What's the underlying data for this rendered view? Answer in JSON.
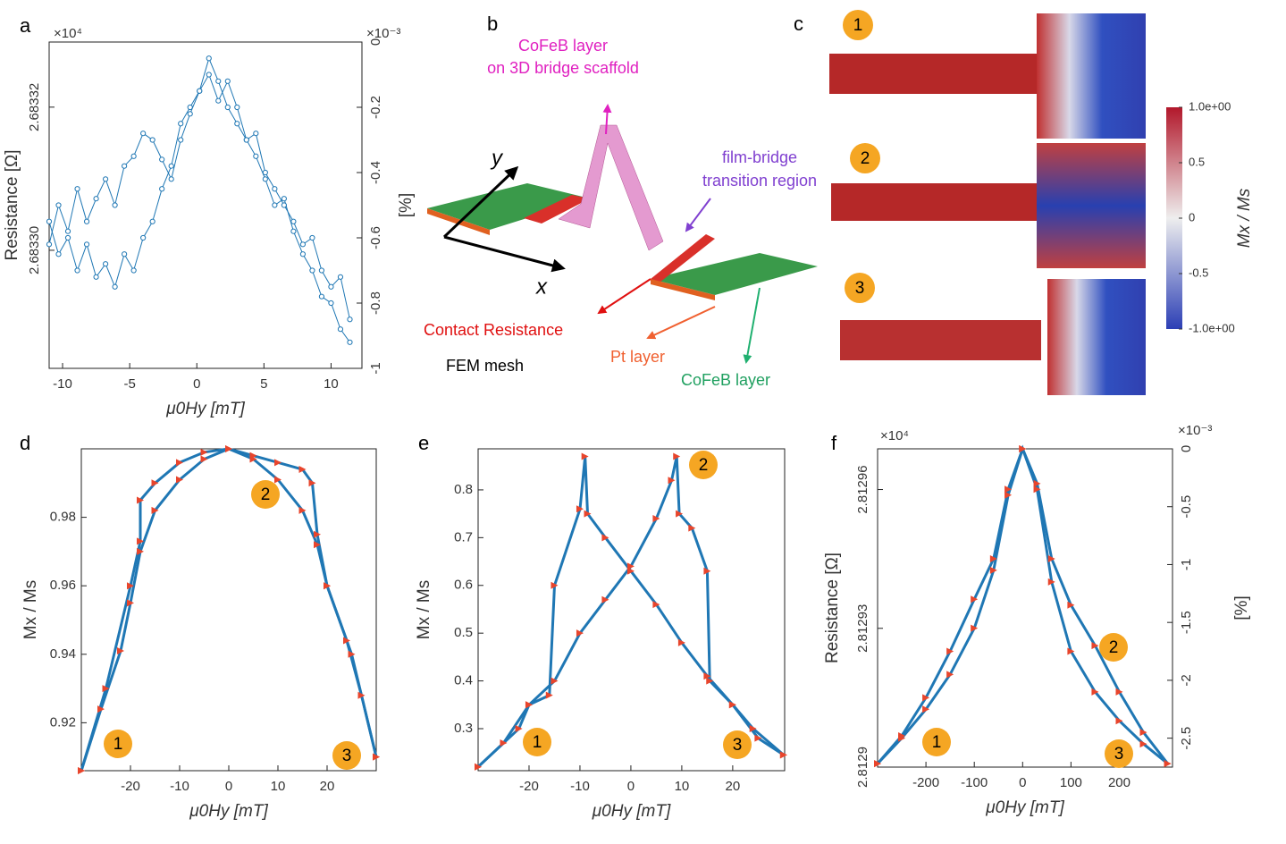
{
  "chart_data": [
    {
      "type": "line",
      "panel_label": "a",
      "xlabel": "μ0Hy [mT]",
      "ylabel": "Resistance [Ω]",
      "y2label": "[%]",
      "ymultiplier": "×10⁴",
      "y2multiplier": "×10⁻³",
      "xlim": [
        -11,
        12.3
      ],
      "xticks": [
        -10,
        -5,
        0,
        5,
        10
      ],
      "ylim": [
        2.6832835,
        2.6833291
      ],
      "yticks": [
        {
          "value": 2.6833,
          "label": "2.68330"
        },
        2.68332
      ],
      "y2lim": [
        -1,
        0
      ],
      "y2ticks": [
        0,
        -0.2,
        -0.4,
        -0.6,
        -0.8,
        -1
      ],
      "marker": "circle",
      "marker_color": "#1f77b4",
      "x": [
        -11,
        -10.3,
        -9.6,
        -8.9,
        -8.2,
        -7.5,
        -6.8,
        -6.1,
        -5.4,
        -4.7,
        -4,
        -3.3,
        -2.6,
        -1.9,
        -1.2,
        -0.5,
        0.2,
        0.9,
        1.6,
        2.3,
        3,
        3.7,
        4.4,
        5.1,
        5.8,
        6.5,
        7.2,
        7.9,
        8.6,
        9.3,
        10,
        10.7,
        11.4
      ],
      "series": [
        {
          "color": "#1f77b4",
          "axis": "y2",
          "values": [
            -0.62,
            -0.5,
            -0.58,
            -0.45,
            -0.55,
            -0.48,
            -0.42,
            -0.5,
            -0.38,
            -0.35,
            -0.28,
            -0.3,
            -0.36,
            -0.42,
            -0.3,
            -0.22,
            -0.15,
            -0.1,
            -0.18,
            -0.12,
            -0.2,
            -0.3,
            -0.28,
            -0.4,
            -0.45,
            -0.5,
            -0.55,
            -0.62,
            -0.6,
            -0.7,
            -0.75,
            -0.72,
            -0.85
          ]
        },
        {
          "color": "#1f77b4",
          "axis": "y2",
          "values": [
            -0.55,
            -0.65,
            -0.6,
            -0.7,
            -0.62,
            -0.72,
            -0.68,
            -0.75,
            -0.65,
            -0.7,
            -0.6,
            -0.55,
            -0.45,
            -0.38,
            -0.25,
            -0.2,
            -0.15,
            -0.05,
            -0.12,
            -0.2,
            -0.25,
            -0.3,
            -0.35,
            -0.42,
            -0.5,
            -0.48,
            -0.58,
            -0.65,
            -0.7,
            -0.78,
            -0.8,
            -0.88,
            -0.92
          ]
        }
      ]
    },
    {
      "type": "line",
      "panel_label": "d",
      "xlabel": "μ0Hy [mT]",
      "ylabel": "Mx / Ms",
      "xlim": [
        -30,
        30
      ],
      "xticks": [
        -20,
        -10,
        0,
        10,
        20
      ],
      "ylim": [
        0.906,
        1.0
      ],
      "yticks": [
        0.92,
        0.94,
        0.96,
        0.98
      ],
      "marker": "triangle",
      "marker_color": "#e8452c",
      "annotations": [
        "1",
        "2",
        "3"
      ],
      "series": [
        {
          "color": "#1f77b4",
          "x": [
            -30,
            -26,
            -22,
            -20,
            -18,
            -15,
            -10,
            -5,
            0,
            5,
            10,
            15,
            18,
            20,
            24,
            27,
            30
          ],
          "values": [
            0.906,
            0.924,
            0.941,
            0.955,
            0.97,
            0.982,
            0.991,
            0.997,
            1.0,
            0.997,
            0.991,
            0.982,
            0.972,
            0.96,
            0.944,
            0.928,
            0.91
          ]
        },
        {
          "color": "#1f77b4",
          "x": [
            -30,
            -25,
            -20,
            -18,
            -18,
            -15,
            -10,
            -5,
            0,
            5,
            10,
            15,
            17,
            18,
            20,
            25,
            30
          ],
          "values": [
            0.906,
            0.93,
            0.96,
            0.973,
            0.985,
            0.99,
            0.996,
            0.999,
            1.0,
            0.998,
            0.996,
            0.994,
            0.99,
            0.975,
            0.96,
            0.94,
            0.91
          ]
        }
      ]
    },
    {
      "type": "line",
      "panel_label": "e",
      "xlabel": "μ0Hy [mT]",
      "ylabel": "Mx / Ms",
      "xlim": [
        -30,
        30.2
      ],
      "xticks": [
        -20,
        -10,
        0,
        10,
        20
      ],
      "ylim": [
        0.212,
        0.886
      ],
      "yticks": [
        0.3,
        0.4,
        0.5,
        0.6,
        0.7,
        0.8
      ],
      "marker": "triangle",
      "marker_color": "#e8452c",
      "annotations": [
        "1",
        "2",
        "3"
      ],
      "series": [
        {
          "color": "#1f77b4",
          "x": [
            -30,
            -22,
            -20,
            -16,
            -15,
            -10,
            -9,
            -8.5,
            -5,
            0,
            5,
            10,
            15,
            20,
            24,
            30
          ],
          "values": [
            0.22,
            0.3,
            0.35,
            0.37,
            0.6,
            0.76,
            0.87,
            0.75,
            0.7,
            0.63,
            0.56,
            0.48,
            0.41,
            0.35,
            0.3,
            0.245
          ]
        },
        {
          "color": "#1f77b4",
          "x": [
            -30,
            -25,
            -20,
            -15,
            -10,
            -5,
            0,
            5,
            8,
            9,
            9.5,
            12,
            15,
            15.5,
            20,
            25,
            30
          ],
          "values": [
            0.22,
            0.27,
            0.35,
            0.4,
            0.5,
            0.57,
            0.64,
            0.74,
            0.82,
            0.87,
            0.75,
            0.72,
            0.63,
            0.4,
            0.35,
            0.28,
            0.245
          ]
        }
      ]
    },
    {
      "type": "line",
      "panel_label": "f",
      "xlabel": "μ0Hy [mT]",
      "ylabel": "Resistance [Ω]",
      "y2label": "[%]",
      "ymultiplier": "×10⁴",
      "y2multiplier": "×10⁻³",
      "xlim": [
        -300,
        310
      ],
      "xticks": [
        -200,
        -100,
        0,
        100,
        200
      ],
      "ylim": [
        2.8129,
        2.8129688
      ],
      "yticks": [
        2.8129,
        2.81293,
        2.81296
      ],
      "y2lim": [
        -2.75,
        0
      ],
      "y2ticks": [
        0,
        -0.5,
        -1,
        -1.5,
        -2,
        -2.5
      ],
      "marker": "triangle",
      "marker_color": "#e8452c",
      "annotations": [
        "1",
        "2",
        "3"
      ],
      "x": [
        -300,
        -250,
        -200,
        -150,
        -100,
        -60,
        -30,
        0,
        30,
        60,
        100,
        150,
        200,
        250,
        300
      ],
      "series": [
        {
          "color": "#1f77b4",
          "axis": "y2",
          "values": [
            -2.72,
            -2.5,
            -2.25,
            -1.95,
            -1.55,
            -1.05,
            -0.4,
            0,
            -0.3,
            -0.95,
            -1.35,
            -1.7,
            -2.1,
            -2.45,
            -2.72
          ]
        },
        {
          "color": "#1f77b4",
          "axis": "y2",
          "values": [
            -2.72,
            -2.48,
            -2.15,
            -1.75,
            -1.3,
            -0.95,
            -0.35,
            0,
            -0.35,
            -1.15,
            -1.75,
            -2.1,
            -2.35,
            -2.55,
            -2.72
          ]
        }
      ]
    }
  ],
  "panels": {
    "b": {
      "label": "b",
      "scaffold": [
        "CoFeB layer",
        "on 3D bridge scaffold"
      ],
      "transition": [
        "film-bridge",
        "transition region"
      ],
      "axis_y": "y",
      "axis_x": "x",
      "contact": "Contact Resistance",
      "pt": "Pt layer",
      "cofeb": "CoFeB layer",
      "mesh": "FEM mesh"
    },
    "c": {
      "label": "c",
      "states": [
        "1",
        "2",
        "3"
      ],
      "colorbar_ticks": [
        "1.0e+00",
        "0.5",
        "0",
        "-0.5",
        "-1.0e+00"
      ],
      "colorbar_label": "Mx / Ms"
    }
  }
}
